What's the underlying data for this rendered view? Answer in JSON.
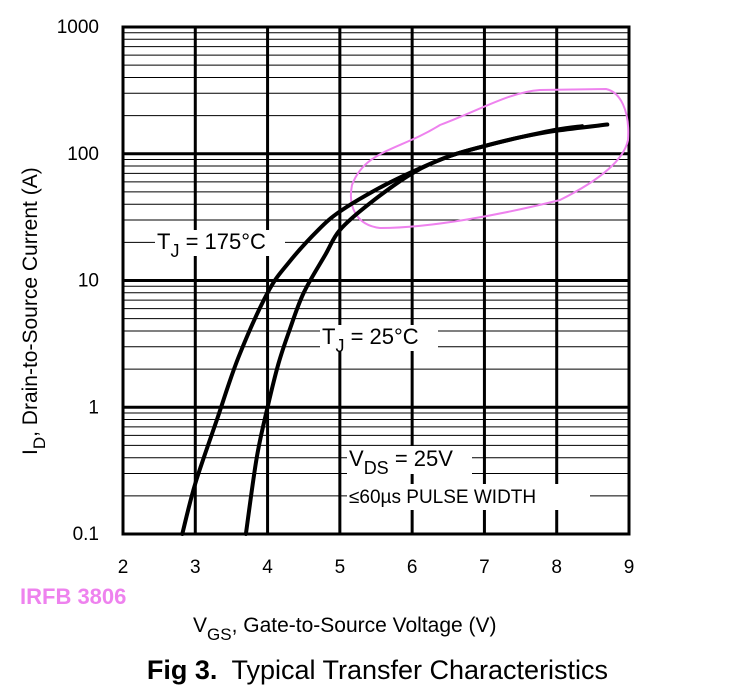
{
  "chart_data": {
    "type": "line",
    "xlabel": {
      "main": "V",
      "sub": "GS",
      "rest": ", Gate-to-Source Voltage (V)"
    },
    "ylabel": {
      "main": "I",
      "sub": "D",
      "rest": ", Drain-to-Source Current  (A)"
    },
    "xlim": [
      2,
      9
    ],
    "ylim": [
      0.1,
      1000
    ],
    "y_scale": "log",
    "grid": true,
    "x_ticks": [
      "2",
      "3",
      "4",
      "5",
      "6",
      "7",
      "8",
      "9"
    ],
    "y_ticks": [
      "0.1",
      "1",
      "10",
      "100",
      "1000"
    ],
    "series": [
      {
        "name": {
          "main": "T",
          "sub": "J",
          "rest": " = 175°C"
        },
        "x": [
          2.82,
          3.0,
          3.3,
          3.6,
          4.0,
          4.3,
          4.7,
          5.0,
          5.5,
          6.0,
          6.5,
          7.0,
          7.5,
          8.0,
          8.35
        ],
        "y": [
          0.1,
          0.25,
          0.8,
          2.5,
          8.0,
          14,
          25,
          35,
          52,
          72,
          95,
          115,
          135,
          155,
          165
        ]
      },
      {
        "name": {
          "main": "T",
          "sub": "J",
          "rest": " = 25°C"
        },
        "x": [
          3.7,
          3.85,
          4.0,
          4.15,
          4.3,
          4.5,
          4.8,
          5.0,
          5.4,
          6.0,
          6.5,
          7.0,
          7.5,
          8.0,
          8.7
        ],
        "y": [
          0.1,
          0.4,
          1.0,
          2.2,
          4.0,
          8.0,
          16,
          25,
          40,
          70,
          95,
          115,
          135,
          152,
          170
        ]
      }
    ],
    "annotations": [
      {
        "main": "V",
        "sub": "DS",
        "rest": " = 25V"
      },
      {
        "text": "≤60µs PULSE WIDTH"
      }
    ],
    "caption_num": "Fig 3.",
    "caption_text": "Typical Transfer Characteristics"
  },
  "stamp": "IRFB 3806",
  "colors": {
    "curve": "#000000",
    "grid": "#000000",
    "highlight": "#ee82ee"
  }
}
